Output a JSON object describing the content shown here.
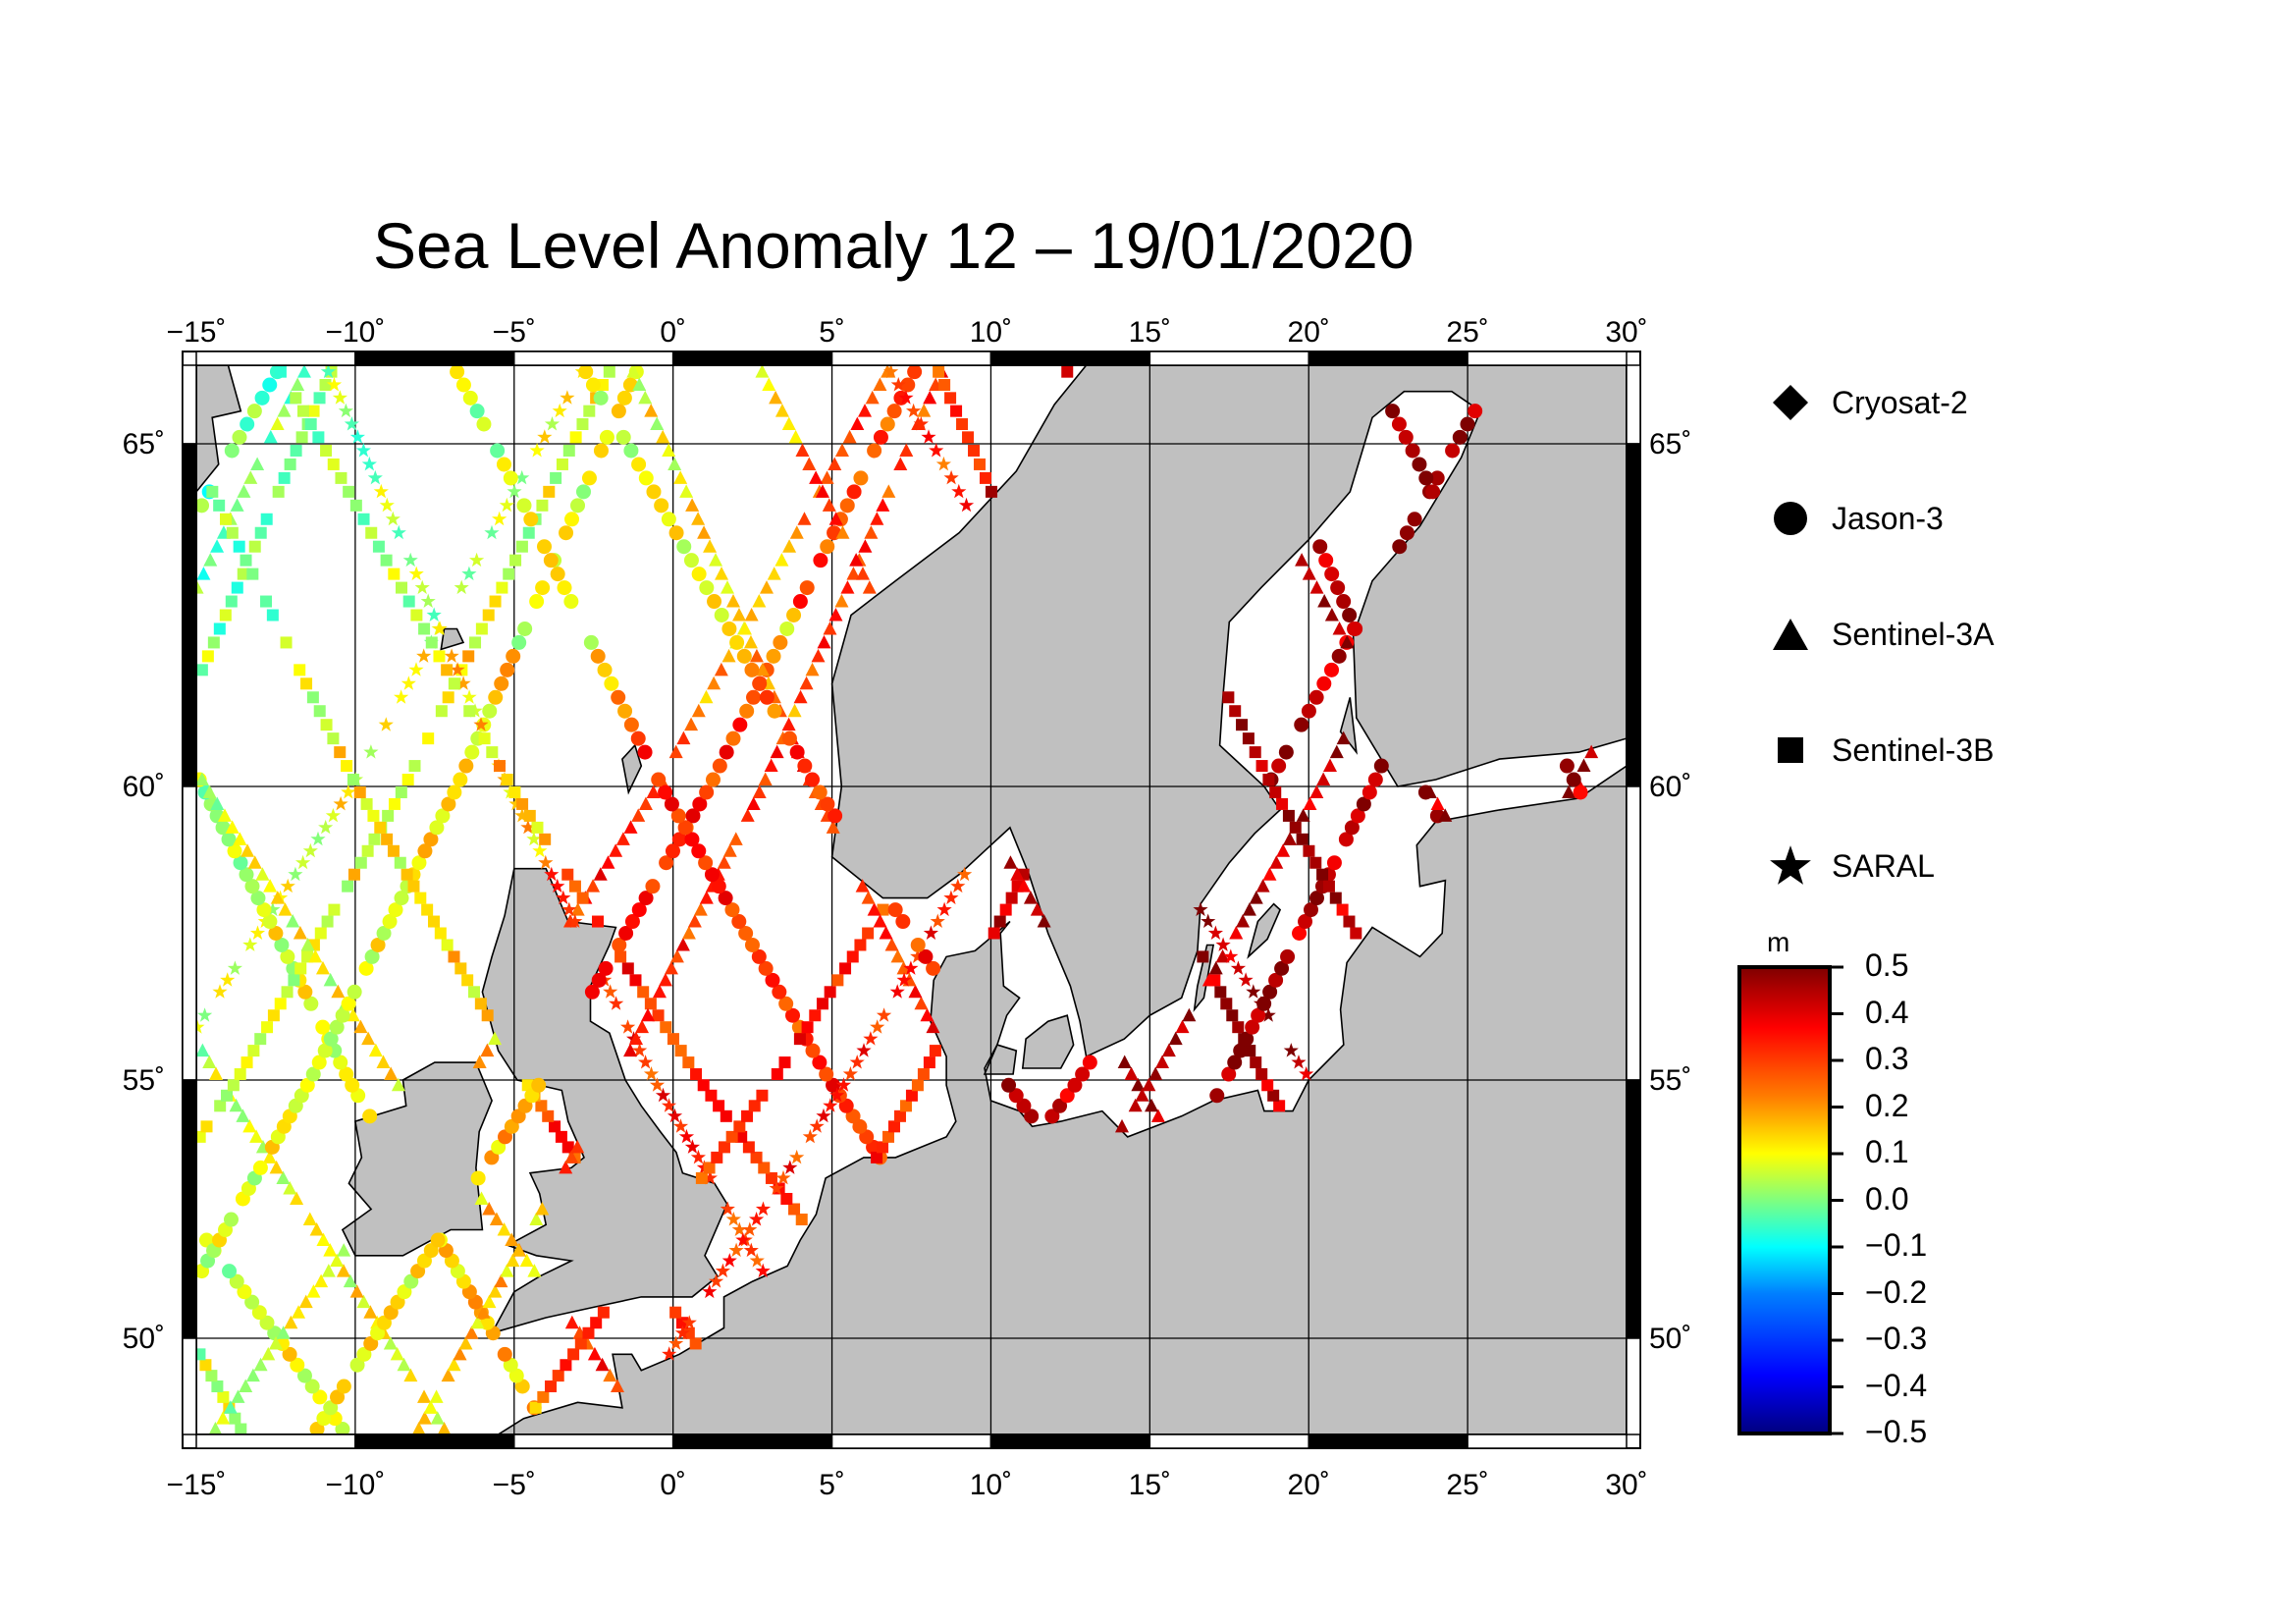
{
  "title": "Sea Level Anomaly 12 – 19/01/2020",
  "map": {
    "lon_range": [
      -15,
      30
    ],
    "lat_range": [
      48.2,
      66.2
    ],
    "lon_ticks": [
      "−15˚",
      "−10˚",
      "−5˚",
      "0˚",
      "5˚",
      "10˚",
      "15˚",
      "20˚",
      "25˚",
      "30˚"
    ],
    "lat_ticks": [
      "65˚",
      "60˚",
      "55˚",
      "50˚"
    ],
    "land_color": "#c0c0c0",
    "sea_color": "#ffffff",
    "grid": true
  },
  "legend": {
    "items": [
      {
        "label": "Cryosat-2",
        "symbol": "diamond-icon"
      },
      {
        "label": "Jason-3",
        "symbol": "circle-icon"
      },
      {
        "label": "Sentinel-3A",
        "symbol": "triangle-icon"
      },
      {
        "label": "Sentinel-3B",
        "symbol": "square-icon"
      },
      {
        "label": "SARAL",
        "symbol": "star-icon"
      }
    ]
  },
  "colorbar": {
    "unit": "m",
    "min": -0.5,
    "max": 0.5,
    "labels": [
      "0.5",
      "0.4",
      "0.3",
      "0.2",
      "0.1",
      "0.0",
      "−0.1",
      "−0.2",
      "−0.3",
      "−0.4",
      "−0.5"
    ],
    "colors": [
      "#00007f",
      "#0000ff",
      "#007fff",
      "#00ffff",
      "#7fff7f",
      "#ffff00",
      "#ff7f00",
      "#ff0000",
      "#7f0000"
    ]
  }
}
